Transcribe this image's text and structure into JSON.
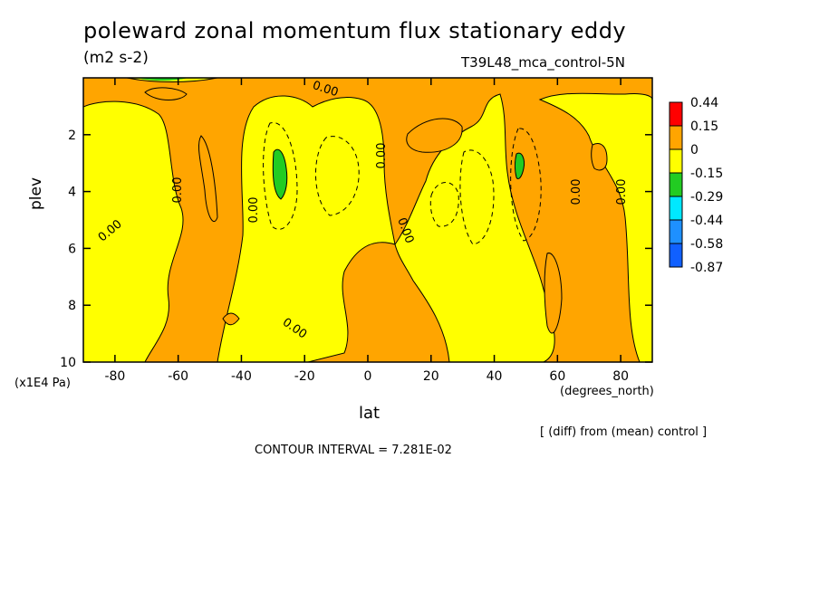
{
  "title": "poleward zonal momentum flux stationary eddy",
  "units": "(m2 s-2)",
  "run_label": "T39L48_mca_control-5N",
  "x_axis_name": "lat",
  "x_axis_units": "(degrees_north)",
  "y_axis_name": "plev",
  "y_axis_units": "(x1E4 Pa)",
  "diff_note": "[ (diff) from (mean) control ]",
  "contour_interval": "CONTOUR INTERVAL = 7.281E-02",
  "colors": {
    "red": "#ff0000",
    "orange": "#ffa500",
    "yellow": "#ffff00",
    "green": "#22cc22",
    "cyan": "#00e8ff",
    "blue_mid": "#1e90ff",
    "blue": "#1060ff"
  },
  "chart_data": {
    "type": "contour",
    "xlim": [
      -90,
      90
    ],
    "ylim": [
      10,
      0
    ],
    "x_ticks": [
      -80,
      -60,
      -40,
      -20,
      0,
      20,
      40,
      60,
      80
    ],
    "x_tick_labels": [
      "-80",
      "-60",
      "-40",
      "-20",
      "0",
      "20",
      "40",
      "60",
      "80"
    ],
    "y_ticks": [
      2,
      4,
      6,
      8,
      10
    ],
    "y_tick_labels": [
      "2",
      "4",
      "6",
      "8",
      "10"
    ],
    "legend": {
      "labels": [
        "0.44",
        "0.15",
        "0",
        "-0.15",
        "-0.29",
        "-0.44",
        "-0.58",
        "-0.87"
      ],
      "colors": [
        "red",
        "orange",
        "yellow",
        "green",
        "cyan",
        "blue_mid",
        "blue"
      ]
    },
    "contour_labels": [
      "0.00",
      "0.00",
      "0.00",
      "0.00",
      "0.00",
      "0.00",
      "0.00",
      "0.00",
      "0.00",
      "0.00"
    ]
  }
}
